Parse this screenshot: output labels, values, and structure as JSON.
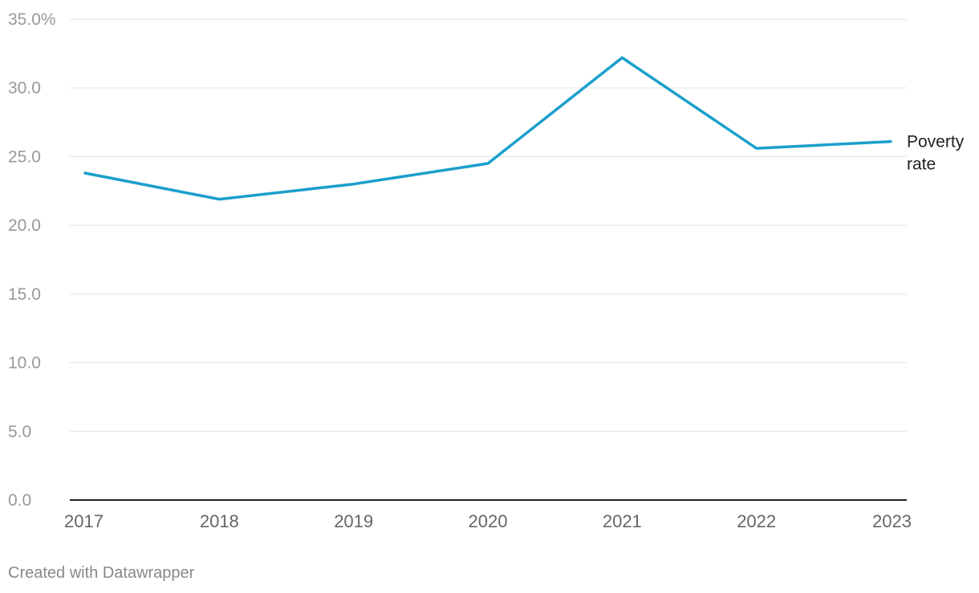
{
  "chart_data": {
    "type": "line",
    "title": "",
    "xlabel": "",
    "ylabel": "",
    "categories": [
      "2017",
      "2018",
      "2019",
      "2020",
      "2021",
      "2022",
      "2023"
    ],
    "series": [
      {
        "name": "Poverty rate",
        "label_lines": [
          "Poverty",
          "rate"
        ],
        "values": [
          23.8,
          21.9,
          23.0,
          24.5,
          32.2,
          25.6,
          26.1
        ],
        "color": "#1b9fcc"
      }
    ],
    "ylim": [
      0,
      35
    ],
    "yticks": [
      0,
      5,
      10,
      15,
      20,
      25,
      30,
      35
    ],
    "ytick_labels": [
      "0.0",
      "5.0",
      "10.0",
      "15.0",
      "20.0",
      "25.0",
      "30.0",
      "35.0%"
    ],
    "grid": true
  },
  "credit": "Created with Datawrapper"
}
